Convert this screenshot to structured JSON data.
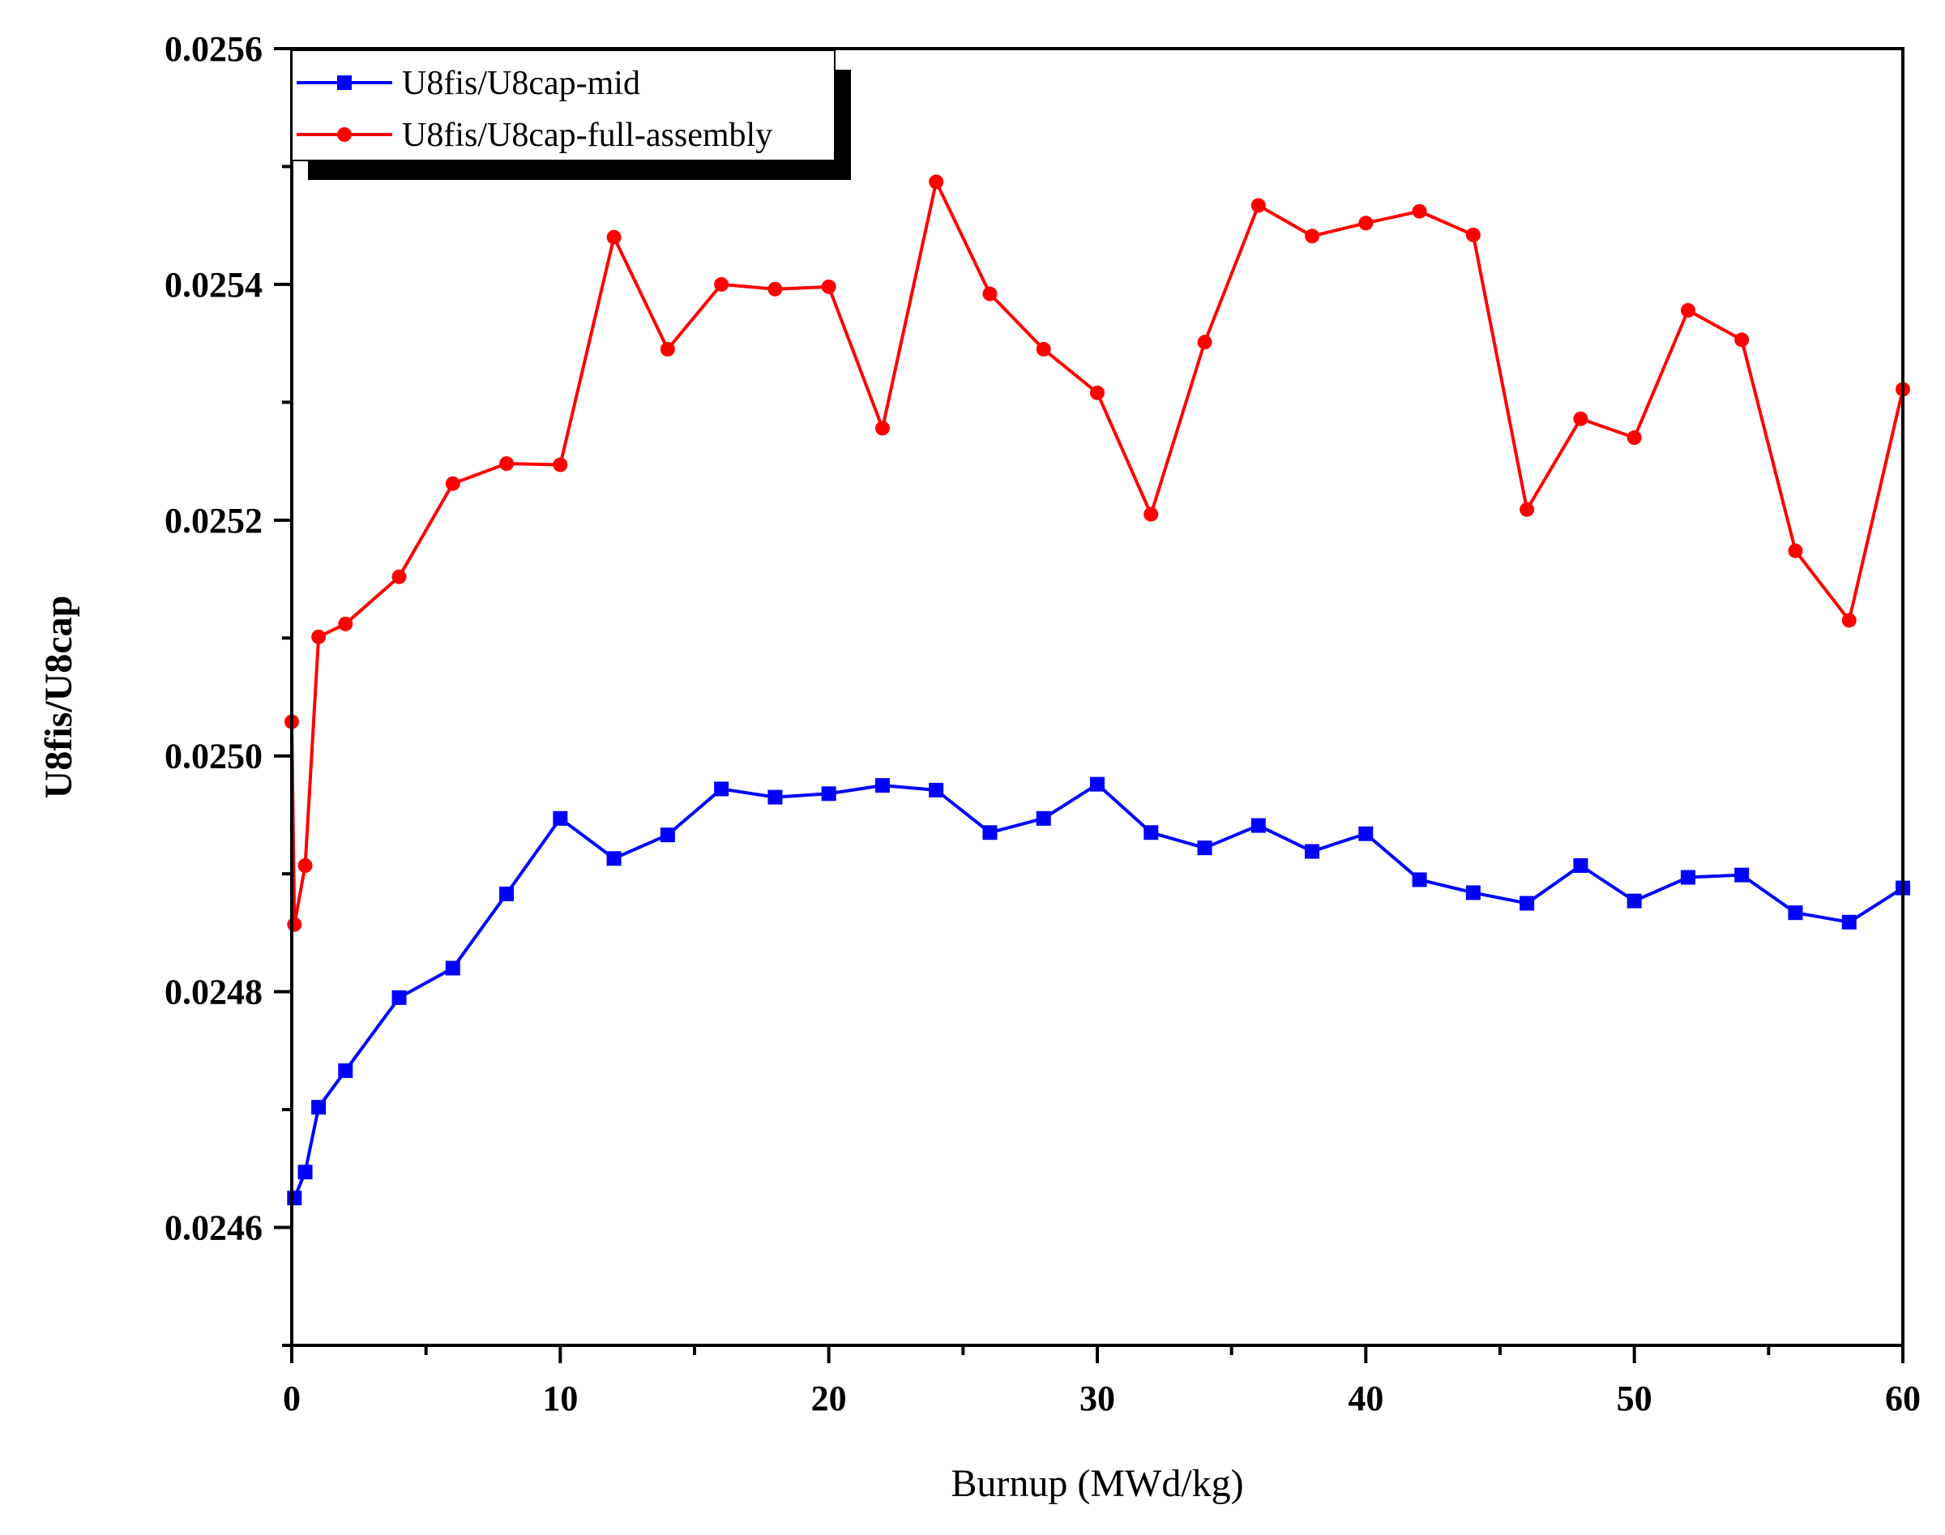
{
  "chart_data": {
    "type": "line",
    "xlabel": "Burnup (MWd/kg)",
    "ylabel": "U8fis/U8cap",
    "xlim": [
      0,
      60
    ],
    "ylim": [
      0.0245,
      0.0256
    ],
    "x_ticks": [
      0,
      10,
      20,
      30,
      40,
      50,
      60
    ],
    "x_tick_labels": [
      "0",
      "10",
      "20",
      "30",
      "40",
      "50",
      "60"
    ],
    "y_ticks": [
      0.0246,
      0.0248,
      0.025,
      0.0252,
      0.0254,
      0.0256
    ],
    "y_tick_labels": [
      "0.0246",
      "0.0248",
      "0.0250",
      "0.0252",
      "0.0254",
      "0.0256"
    ],
    "grid": false,
    "legend_position": "top-left",
    "series": [
      {
        "name": "U8fis/U8cap-mid",
        "color": "#0000ff",
        "marker": "square",
        "x": [
          0.1,
          0.5,
          1,
          2,
          4,
          6,
          8,
          10,
          12,
          14,
          16,
          18,
          20,
          22,
          24,
          26,
          28,
          30,
          32,
          34,
          36,
          38,
          40,
          42,
          44,
          46,
          48,
          50,
          52,
          54,
          56,
          58,
          60
        ],
        "y": [
          0.024625,
          0.024647,
          0.024702,
          0.024733,
          0.024795,
          0.02482,
          0.024883,
          0.024947,
          0.024913,
          0.024933,
          0.024972,
          0.024965,
          0.024968,
          0.024975,
          0.024971,
          0.024935,
          0.024947,
          0.024976,
          0.024935,
          0.024922,
          0.024941,
          0.024919,
          0.024934,
          0.024895,
          0.024884,
          0.024875,
          0.024907,
          0.024877,
          0.024897,
          0.024899,
          0.024867,
          0.024859,
          0.024888
        ]
      },
      {
        "name": "U8fis/U8cap-full-assembly",
        "color": "#ff0000",
        "marker": "circle",
        "x": [
          0,
          0.1,
          0.5,
          1,
          2,
          4,
          6,
          8,
          10,
          12,
          14,
          16,
          18,
          20,
          22,
          24,
          26,
          28,
          30,
          32,
          34,
          36,
          38,
          40,
          42,
          44,
          46,
          48,
          50,
          52,
          54,
          56,
          58,
          60
        ],
        "y": [
          0.025029,
          0.024857,
          0.024907,
          0.025101,
          0.025112,
          0.025152,
          0.025231,
          0.025248,
          0.025247,
          0.02544,
          0.025345,
          0.0254,
          0.025396,
          0.025398,
          0.025278,
          0.025487,
          0.025392,
          0.025345,
          0.025308,
          0.025205,
          0.025351,
          0.025467,
          0.025441,
          0.025452,
          0.025462,
          0.025442,
          0.025209,
          0.025286,
          0.02527,
          0.025378,
          0.025353,
          0.025174,
          0.025115,
          0.025311
        ]
      }
    ]
  }
}
